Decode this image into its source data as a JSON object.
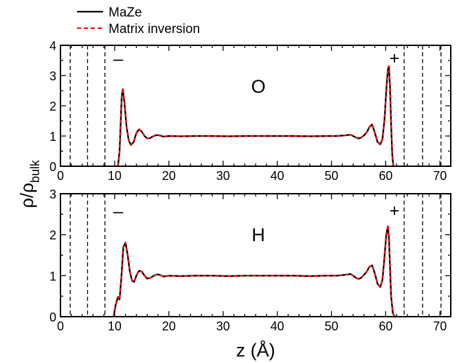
{
  "figure": {
    "ylabel_main": "ρ/ρ",
    "ylabel_sub": "bulk",
    "xlabel": "z (Å)"
  },
  "legend": {
    "placement": "top-left",
    "entries": [
      {
        "name": "MaZe",
        "color": "#000000",
        "style": "solid"
      },
      {
        "name": "Matrix inversion",
        "color": "#ff0000",
        "style": "dashed"
      }
    ]
  },
  "chart_data": [
    {
      "type": "line",
      "panel_label": "O",
      "electrode_left": "–",
      "electrode_right": "+",
      "xlim": [
        0,
        72
      ],
      "ylim": [
        0,
        4
      ],
      "x_ticks": [
        0,
        10,
        20,
        30,
        40,
        50,
        60,
        70
      ],
      "y_ticks": [
        0,
        1,
        2,
        3,
        4
      ],
      "vlines": [
        1.8,
        5.0,
        8.2,
        63.4,
        66.8,
        70.2
      ],
      "grid": false,
      "series": [
        {
          "name": "MaZe",
          "color": "#000000",
          "style": "solid",
          "x": [
            10.6,
            10.9,
            11.1,
            11.3,
            11.5,
            11.8,
            12.2,
            12.6,
            13.0,
            13.5,
            14.0,
            14.5,
            15.0,
            15.5,
            16.0,
            16.5,
            17.0,
            17.5,
            18.0,
            18.5,
            19.0,
            20.0,
            22.0,
            25.0,
            28.0,
            31.0,
            34.0,
            37.0,
            40.0,
            43.0,
            46.0,
            49.0,
            51.0,
            52.5,
            53.5,
            54.0,
            54.5,
            55.0,
            55.5,
            56.0,
            56.5,
            57.0,
            57.5,
            58.0,
            58.5,
            59.0,
            59.4,
            59.8,
            60.1,
            60.4,
            60.6,
            60.8,
            61.0,
            61.2,
            61.4
          ],
          "y": [
            0.0,
            0.5,
            1.4,
            2.3,
            2.55,
            2.1,
            1.3,
            0.85,
            0.7,
            0.8,
            1.1,
            1.22,
            1.15,
            1.0,
            0.92,
            0.93,
            0.98,
            1.02,
            1.03,
            1.01,
            0.98,
            1.0,
            0.99,
            1.0,
            1.0,
            0.99,
            1.0,
            1.0,
            1.0,
            1.0,
            0.99,
            1.0,
            1.0,
            1.02,
            1.04,
            1.0,
            0.95,
            0.92,
            0.95,
            1.02,
            1.12,
            1.3,
            1.38,
            1.1,
            0.8,
            0.72,
            0.9,
            1.6,
            2.5,
            3.2,
            3.3,
            2.6,
            1.4,
            0.4,
            0.0
          ]
        },
        {
          "name": "Matrix inversion",
          "color": "#ff0000",
          "style": "dashed",
          "x": [
            10.6,
            10.9,
            11.1,
            11.3,
            11.5,
            11.8,
            12.2,
            12.6,
            13.0,
            13.5,
            14.0,
            14.5,
            15.0,
            15.5,
            16.0,
            16.5,
            17.0,
            17.5,
            18.0,
            18.5,
            19.0,
            20.0,
            22.0,
            25.0,
            28.0,
            31.0,
            34.0,
            37.0,
            40.0,
            43.0,
            46.0,
            49.0,
            51.0,
            52.5,
            53.5,
            54.0,
            54.5,
            55.0,
            55.5,
            56.0,
            56.5,
            57.0,
            57.5,
            58.0,
            58.5,
            59.0,
            59.4,
            59.8,
            60.1,
            60.4,
            60.6,
            60.8,
            61.0,
            61.2,
            61.4
          ],
          "y": [
            0.0,
            0.52,
            1.42,
            2.35,
            2.6,
            2.12,
            1.31,
            0.85,
            0.7,
            0.8,
            1.1,
            1.23,
            1.15,
            1.0,
            0.92,
            0.93,
            0.98,
            1.02,
            1.03,
            1.01,
            0.98,
            1.0,
            0.99,
            1.0,
            1.0,
            0.99,
            1.0,
            1.0,
            1.0,
            1.0,
            0.99,
            1.0,
            1.0,
            1.02,
            1.04,
            1.0,
            0.95,
            0.92,
            0.95,
            1.02,
            1.12,
            1.3,
            1.39,
            1.1,
            0.8,
            0.72,
            0.9,
            1.62,
            2.55,
            3.25,
            3.32,
            2.62,
            1.42,
            0.42,
            0.0
          ]
        }
      ]
    },
    {
      "type": "line",
      "panel_label": "H",
      "electrode_left": "–",
      "electrode_right": "+",
      "xlim": [
        0,
        72
      ],
      "ylim": [
        0,
        3
      ],
      "x_ticks": [
        0,
        10,
        20,
        30,
        40,
        50,
        60,
        70
      ],
      "y_ticks": [
        0,
        1,
        2,
        3
      ],
      "vlines": [
        1.8,
        5.0,
        8.2,
        63.4,
        66.8,
        70.2
      ],
      "grid": false,
      "series": [
        {
          "name": "MaZe",
          "color": "#000000",
          "style": "solid",
          "x": [
            9.8,
            10.2,
            10.6,
            10.9,
            11.2,
            11.6,
            12.0,
            12.4,
            12.8,
            13.2,
            13.6,
            14.0,
            14.5,
            15.0,
            15.5,
            16.0,
            16.5,
            17.0,
            17.5,
            18.0,
            18.5,
            19.0,
            20.0,
            22.0,
            25.0,
            28.0,
            31.0,
            34.0,
            37.0,
            40.0,
            43.0,
            46.0,
            49.0,
            51.0,
            52.5,
            53.5,
            54.0,
            54.5,
            55.0,
            55.5,
            56.0,
            56.5,
            57.0,
            57.5,
            58.0,
            58.5,
            59.0,
            59.4,
            59.8,
            60.1,
            60.4,
            60.6,
            60.8,
            61.0,
            61.3,
            61.6,
            62.0
          ],
          "y": [
            0.0,
            0.3,
            0.48,
            0.42,
            0.9,
            1.7,
            1.8,
            1.5,
            1.1,
            0.88,
            0.85,
            1.0,
            1.12,
            1.1,
            1.0,
            0.93,
            0.94,
            0.98,
            1.02,
            1.03,
            1.01,
            0.98,
            1.0,
            0.99,
            1.0,
            1.0,
            0.99,
            1.0,
            1.0,
            1.0,
            1.0,
            0.99,
            1.0,
            1.0,
            1.02,
            1.04,
            1.0,
            0.95,
            0.92,
            0.95,
            1.02,
            1.1,
            1.22,
            1.25,
            1.05,
            0.8,
            0.72,
            0.9,
            1.5,
            2.0,
            2.2,
            1.9,
            1.2,
            0.5,
            0.1,
            0.0,
            0.0
          ]
        },
        {
          "name": "Matrix inversion",
          "color": "#ff0000",
          "style": "dashed",
          "x": [
            9.8,
            10.2,
            10.6,
            10.9,
            11.2,
            11.6,
            12.0,
            12.4,
            12.8,
            13.2,
            13.6,
            14.0,
            14.5,
            15.0,
            15.5,
            16.0,
            16.5,
            17.0,
            17.5,
            18.0,
            18.5,
            19.0,
            20.0,
            22.0,
            25.0,
            28.0,
            31.0,
            34.0,
            37.0,
            40.0,
            43.0,
            46.0,
            49.0,
            51.0,
            52.5,
            53.5,
            54.0,
            54.5,
            55.0,
            55.5,
            56.0,
            56.5,
            57.0,
            57.5,
            58.0,
            58.5,
            59.0,
            59.4,
            59.8,
            60.1,
            60.4,
            60.6,
            60.8,
            61.0,
            61.3,
            61.6,
            62.0
          ],
          "y": [
            0.0,
            0.31,
            0.49,
            0.43,
            0.92,
            1.72,
            1.82,
            1.51,
            1.1,
            0.88,
            0.85,
            1.0,
            1.13,
            1.1,
            1.0,
            0.93,
            0.94,
            0.98,
            1.02,
            1.03,
            1.01,
            0.98,
            1.0,
            0.99,
            1.0,
            1.0,
            0.99,
            1.0,
            1.0,
            1.0,
            1.0,
            0.99,
            1.0,
            1.0,
            1.02,
            1.04,
            1.0,
            0.95,
            0.92,
            0.95,
            1.02,
            1.1,
            1.22,
            1.26,
            1.05,
            0.8,
            0.72,
            0.9,
            1.52,
            2.03,
            2.24,
            1.92,
            1.22,
            0.5,
            0.1,
            0.0,
            0.0
          ]
        }
      ]
    }
  ]
}
